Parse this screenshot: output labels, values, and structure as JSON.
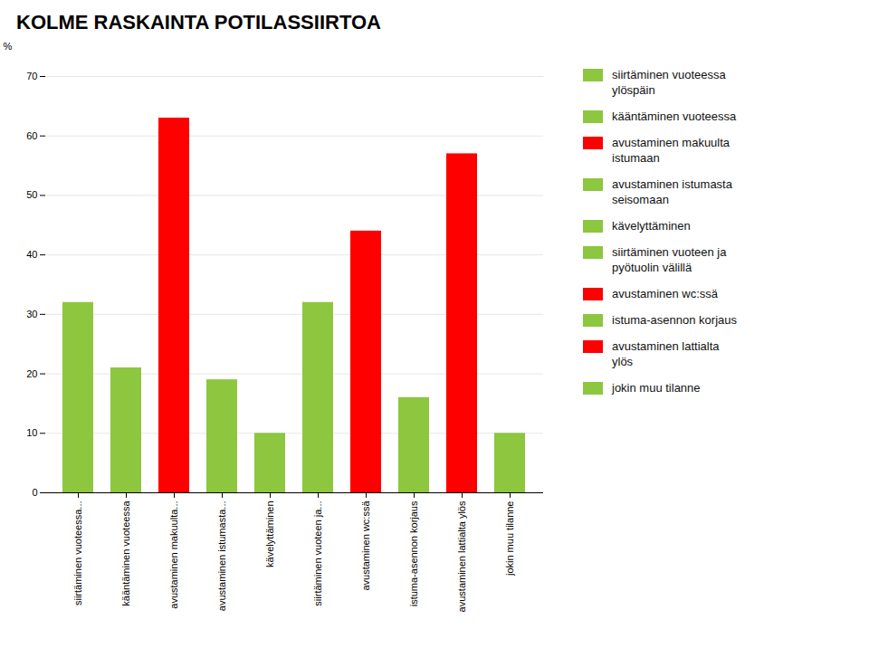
{
  "chart_data": {
    "type": "bar",
    "title": "KOLME RASKAINTA POTILASSIIRTOA",
    "y_label": "%",
    "categories": [
      "siirtäminen vuoteessa...",
      "kääntäminen vuoteessa",
      "avustaminen makuulta...",
      "avustaminen istumasta...",
      "kävelyttäminen",
      "siirtäminen vuoteen ja...",
      "avustaminen wc:ssä",
      "istuma-asennon korjaus",
      "avustaminen lattialta ylös",
      "jokin muu tilanne"
    ],
    "values": [
      32,
      21,
      63,
      19,
      10,
      32,
      44,
      16,
      57,
      10
    ],
    "colors": [
      "#8DC63F",
      "#8DC63F",
      "#FF0000",
      "#8DC63F",
      "#8DC63F",
      "#8DC63F",
      "#FF0000",
      "#8DC63F",
      "#FF0000",
      "#8DC63F"
    ],
    "ylim": [
      0,
      70
    ],
    "yticks": [
      0,
      10,
      20,
      30,
      40,
      50,
      60,
      70
    ],
    "grid": true,
    "legend": "right",
    "legend_labels": [
      "siirtäminen vuoteessa\nylöspäin",
      "kääntäminen vuoteessa",
      "avustaminen makuulta\nistumaan",
      "avustaminen istumasta\nseisomaan",
      "kävelyttäminen",
      "siirtäminen vuoteen ja\npyötuolin välillä",
      "avustaminen wc:ssä",
      "istuma-asennon korjaus",
      "avustaminen lattialta\nylös",
      "jokin muu tilanne"
    ]
  }
}
